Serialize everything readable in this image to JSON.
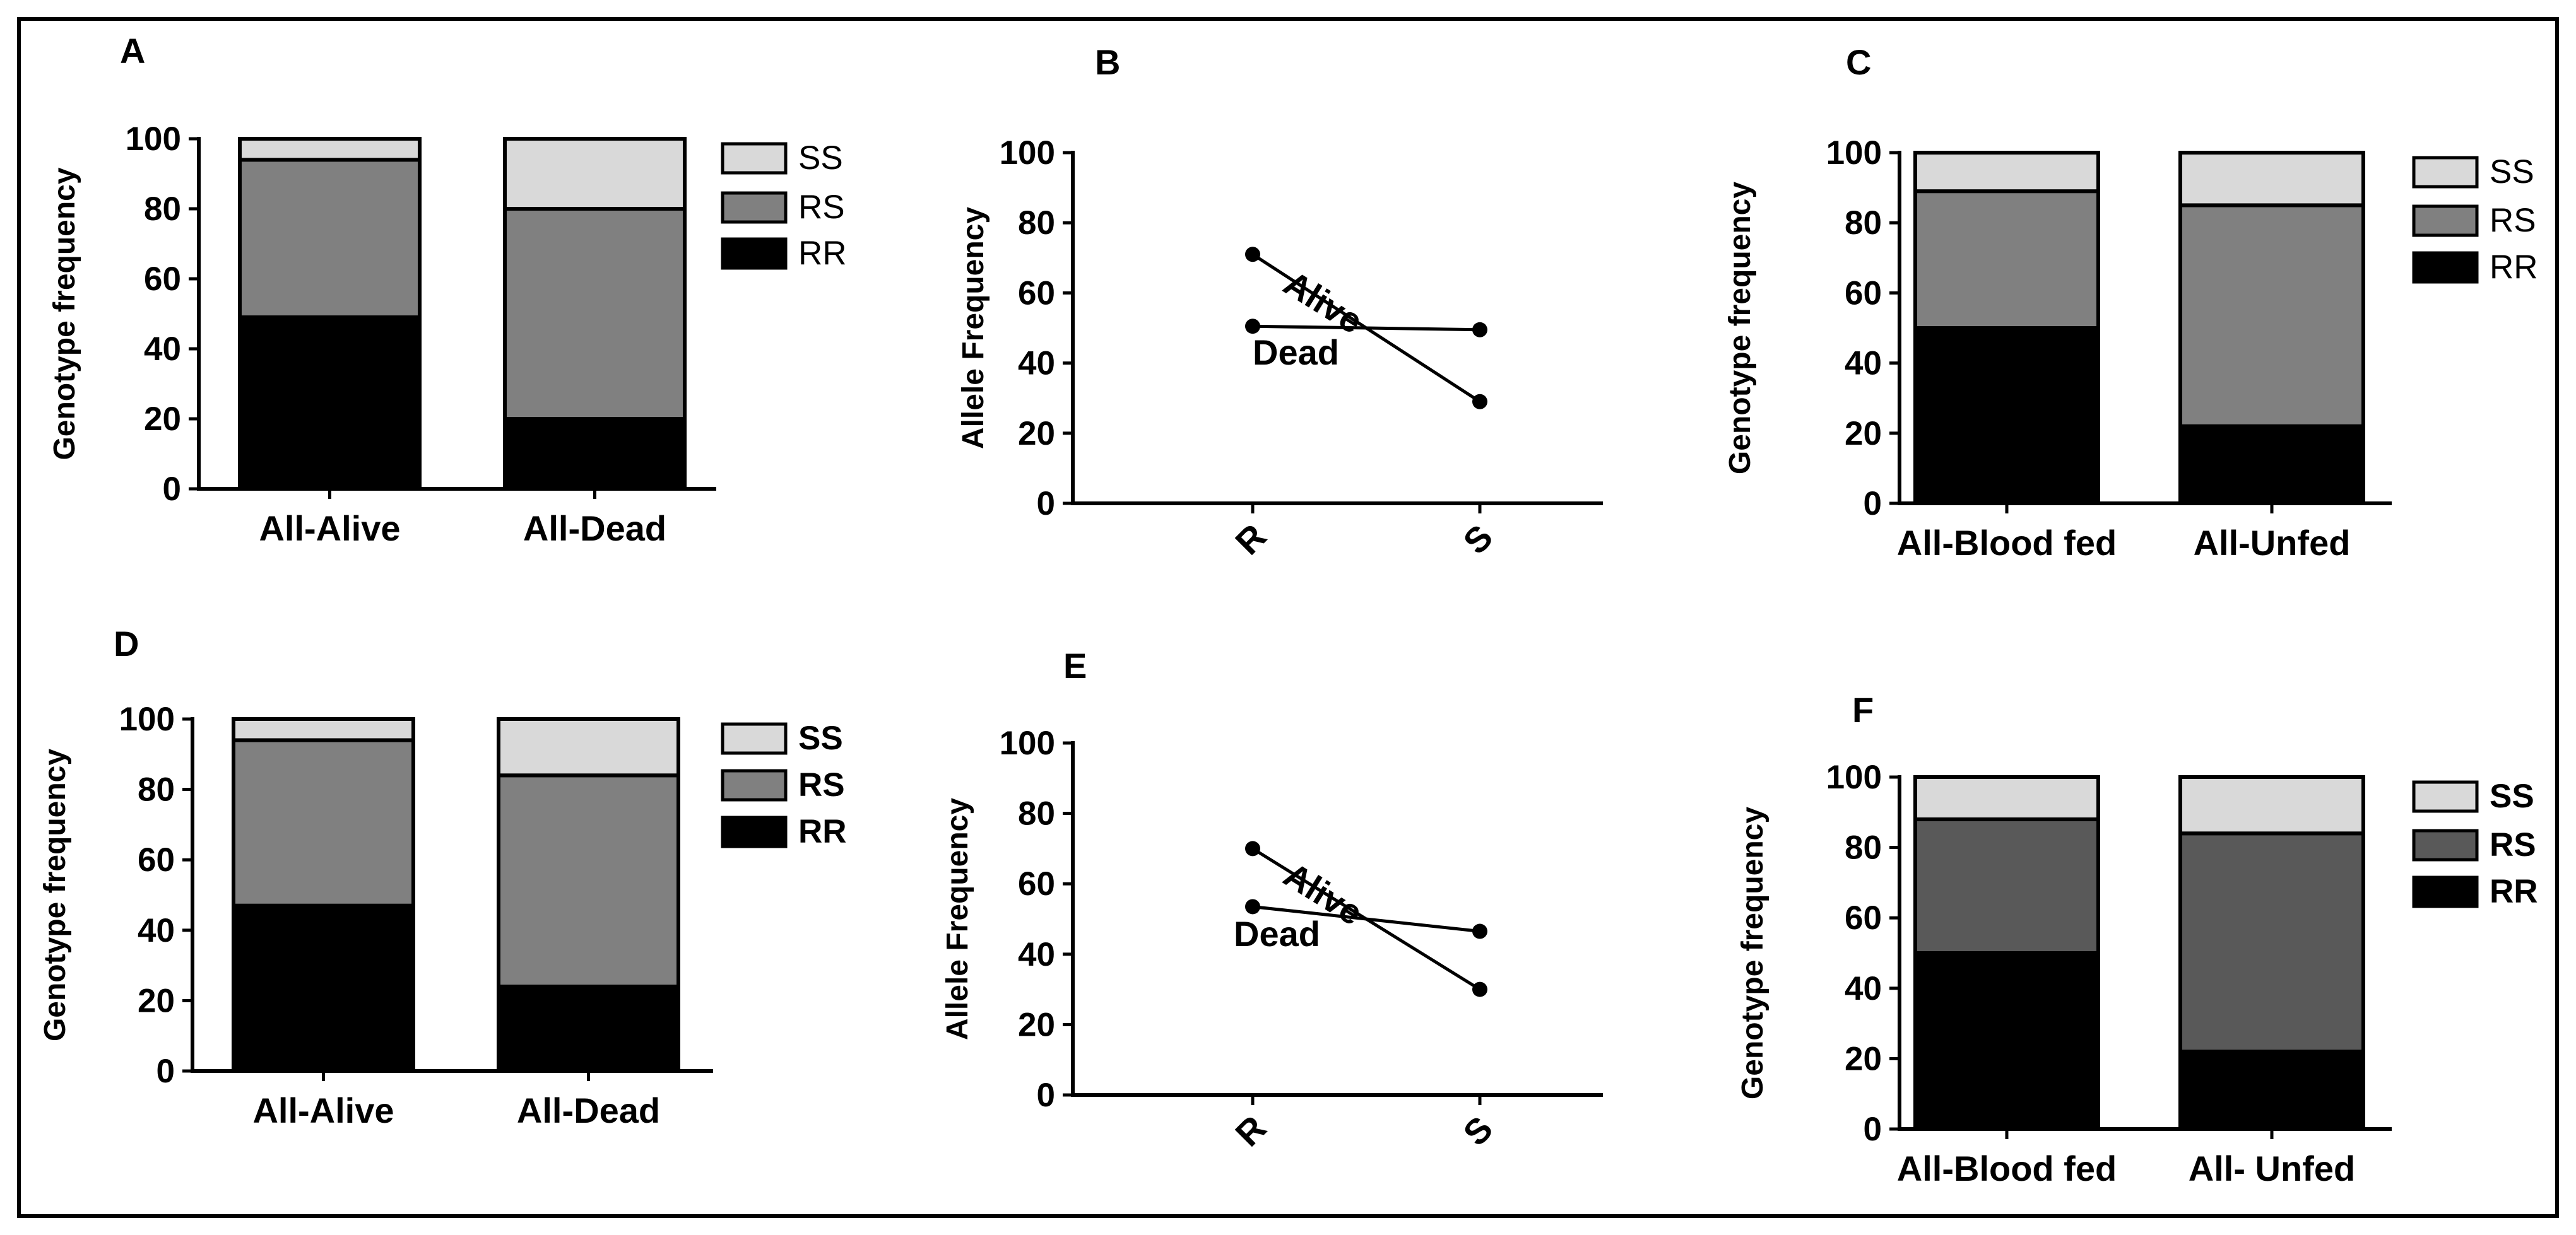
{
  "colors": {
    "SS": "#d9d9d9",
    "RS": "#808080",
    "RS_dark": "#595959",
    "RR": "#000000"
  },
  "chart_data": [
    {
      "panel": "A",
      "type": "bar",
      "stacked": true,
      "ylabel": "Genotype frequency",
      "ylim": [
        0,
        100
      ],
      "yticks": [
        0,
        20,
        40,
        60,
        80,
        100
      ],
      "categories": [
        "All-Alive",
        "All-Dead"
      ],
      "series": [
        {
          "name": "RR",
          "values": [
            49,
            20
          ]
        },
        {
          "name": "RS",
          "values": [
            45,
            60
          ]
        },
        {
          "name": "SS",
          "values": [
            6,
            20
          ]
        }
      ],
      "legend": [
        "SS",
        "RS",
        "RR"
      ],
      "legend_position": "right"
    },
    {
      "panel": "B",
      "type": "line",
      "ylabel": "Allele Frequency",
      "ylim": [
        0,
        100
      ],
      "yticks": [
        0,
        20,
        40,
        60,
        80,
        100
      ],
      "x": [
        "R",
        "S"
      ],
      "series": [
        {
          "name": "Alive",
          "values": [
            71,
            29
          ]
        },
        {
          "name": "Dead",
          "values": [
            50.5,
            49.5
          ]
        }
      ]
    },
    {
      "panel": "C",
      "type": "bar",
      "stacked": true,
      "ylabel": "Genotype frequency",
      "ylim": [
        0,
        100
      ],
      "yticks": [
        0,
        20,
        40,
        60,
        80,
        100
      ],
      "categories": [
        "All-Blood fed",
        "All-Unfed"
      ],
      "series": [
        {
          "name": "RR",
          "values": [
            50,
            22
          ]
        },
        {
          "name": "RS",
          "values": [
            39,
            63
          ]
        },
        {
          "name": "SS",
          "values": [
            11,
            15
          ]
        }
      ],
      "legend": [
        "SS",
        "RS",
        "RR"
      ],
      "legend_position": "right"
    },
    {
      "panel": "D",
      "type": "bar",
      "stacked": true,
      "ylabel": "Genotype frequency",
      "ylim": [
        0,
        100
      ],
      "yticks": [
        0,
        20,
        40,
        60,
        80,
        100
      ],
      "categories": [
        "All-Alive",
        "All-Dead"
      ],
      "series": [
        {
          "name": "RR",
          "values": [
            47,
            24
          ]
        },
        {
          "name": "RS",
          "values": [
            47,
            60
          ]
        },
        {
          "name": "SS",
          "values": [
            6,
            16
          ]
        }
      ],
      "legend": [
        "SS",
        "RS",
        "RR"
      ],
      "legend_position": "right"
    },
    {
      "panel": "E",
      "type": "line",
      "ylabel": "Allele Frequency",
      "ylim": [
        0,
        100
      ],
      "yticks": [
        0,
        20,
        40,
        60,
        80,
        100
      ],
      "x": [
        "R",
        "S"
      ],
      "series": [
        {
          "name": "Alive",
          "values": [
            70,
            30
          ]
        },
        {
          "name": "Dead",
          "values": [
            53.5,
            46.5
          ]
        }
      ]
    },
    {
      "panel": "F",
      "type": "bar",
      "stacked": true,
      "ylabel": "Genotype frequency",
      "ylim": [
        0,
        100
      ],
      "yticks": [
        0,
        20,
        40,
        60,
        80,
        100
      ],
      "categories": [
        "All-Blood fed",
        "All- Unfed"
      ],
      "series": [
        {
          "name": "RR",
          "values": [
            50,
            22
          ]
        },
        {
          "name": "RS",
          "values": [
            38,
            62
          ]
        },
        {
          "name": "SS",
          "values": [
            12,
            16
          ]
        }
      ],
      "legend": [
        "SS",
        "RS",
        "RR"
      ],
      "legend_position": "right"
    }
  ]
}
